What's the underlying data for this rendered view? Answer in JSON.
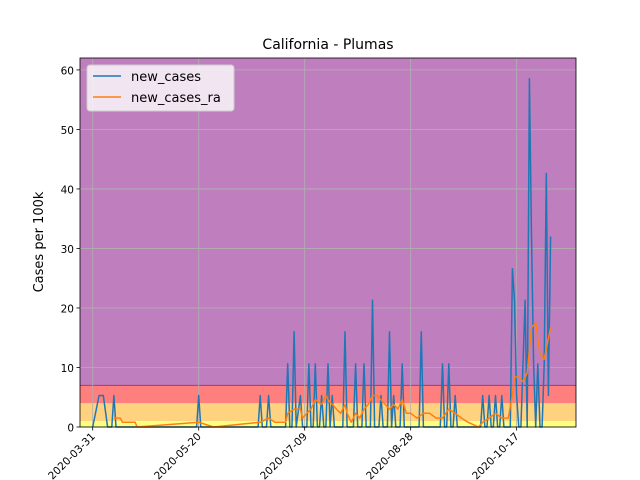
{
  "chart_data": {
    "type": "line",
    "title": "California - Plumas",
    "xlabel": "",
    "ylabel": "Cases per 100k",
    "x_tick_labels": [
      "2020-03-31",
      "2020-05-20",
      "2020-07-09",
      "2020-08-28",
      "2020-10-17"
    ],
    "x_range": [
      "2020-03-25",
      "2020-11-14"
    ],
    "ylim": [
      0,
      62
    ],
    "yticks": [
      0,
      10,
      20,
      30,
      40,
      50,
      60
    ],
    "grid": true,
    "legend_position": "top-left",
    "background_bands": [
      {
        "from": 0,
        "to": 1,
        "color": "#ffff7f"
      },
      {
        "from": 1,
        "to": 4,
        "color": "#ffd27f"
      },
      {
        "from": 4,
        "to": 7,
        "color": "#ff7f7f"
      },
      {
        "from": 7,
        "to": 62,
        "color": "#bf7fbf"
      }
    ],
    "series": [
      {
        "name": "new_cases",
        "color": "#1f77b4",
        "points": [
          [
            "2020-03-31",
            0
          ],
          [
            "2020-04-03",
            5.3
          ],
          [
            "2020-04-05",
            5.3
          ],
          [
            "2020-04-07",
            0
          ],
          [
            "2020-04-09",
            0
          ],
          [
            "2020-04-10",
            5.3
          ],
          [
            "2020-04-11",
            0
          ],
          [
            "2020-05-19",
            0
          ],
          [
            "2020-05-20",
            5.3
          ],
          [
            "2020-05-21",
            0
          ],
          [
            "2020-06-17",
            0
          ],
          [
            "2020-06-18",
            5.3
          ],
          [
            "2020-06-19",
            0
          ],
          [
            "2020-06-21",
            0
          ],
          [
            "2020-06-22",
            5.3
          ],
          [
            "2020-06-23",
            0
          ],
          [
            "2020-06-30",
            0
          ],
          [
            "2020-07-01",
            10.6
          ],
          [
            "2020-07-02",
            0
          ],
          [
            "2020-07-03",
            0
          ],
          [
            "2020-07-04",
            16
          ],
          [
            "2020-07-05",
            0
          ],
          [
            "2020-07-07",
            5.3
          ],
          [
            "2020-07-08",
            0
          ],
          [
            "2020-07-10",
            0
          ],
          [
            "2020-07-11",
            10.6
          ],
          [
            "2020-07-12",
            0
          ],
          [
            "2020-07-13",
            0
          ],
          [
            "2020-07-14",
            10.6
          ],
          [
            "2020-07-15",
            0
          ],
          [
            "2020-07-16",
            0
          ],
          [
            "2020-07-17",
            5.3
          ],
          [
            "2020-07-18",
            0
          ],
          [
            "2020-07-19",
            0
          ],
          [
            "2020-07-20",
            10.6
          ],
          [
            "2020-07-21",
            0
          ],
          [
            "2020-07-22",
            5.3
          ],
          [
            "2020-07-23",
            0
          ],
          [
            "2020-07-27",
            0
          ],
          [
            "2020-07-28",
            16
          ],
          [
            "2020-07-29",
            0
          ],
          [
            "2020-08-01",
            0
          ],
          [
            "2020-08-02",
            10.6
          ],
          [
            "2020-08-03",
            0
          ],
          [
            "2020-08-05",
            0
          ],
          [
            "2020-08-06",
            10.6
          ],
          [
            "2020-08-07",
            0
          ],
          [
            "2020-08-09",
            0
          ],
          [
            "2020-08-10",
            21.3
          ],
          [
            "2020-08-11",
            0
          ],
          [
            "2020-08-13",
            0
          ],
          [
            "2020-08-14",
            5.3
          ],
          [
            "2020-08-15",
            0
          ],
          [
            "2020-08-17",
            0
          ],
          [
            "2020-08-18",
            16
          ],
          [
            "2020-08-19",
            0
          ],
          [
            "2020-08-20",
            5.3
          ],
          [
            "2020-08-21",
            0
          ],
          [
            "2020-08-23",
            0
          ],
          [
            "2020-08-24",
            10.6
          ],
          [
            "2020-08-25",
            0
          ],
          [
            "2020-09-01",
            0
          ],
          [
            "2020-09-02",
            16
          ],
          [
            "2020-09-03",
            0
          ],
          [
            "2020-09-11",
            0
          ],
          [
            "2020-09-12",
            10.6
          ],
          [
            "2020-09-13",
            0
          ],
          [
            "2020-09-14",
            0
          ],
          [
            "2020-09-15",
            10.6
          ],
          [
            "2020-09-16",
            0
          ],
          [
            "2020-09-17",
            0
          ],
          [
            "2020-09-18",
            5.3
          ],
          [
            "2020-09-19",
            0
          ],
          [
            "2020-09-30",
            0
          ],
          [
            "2020-10-01",
            5.3
          ],
          [
            "2020-10-02",
            0
          ],
          [
            "2020-10-03",
            0
          ],
          [
            "2020-10-04",
            5.3
          ],
          [
            "2020-10-05",
            0
          ],
          [
            "2020-10-06",
            0
          ],
          [
            "2020-10-07",
            5.3
          ],
          [
            "2020-10-08",
            0
          ],
          [
            "2020-10-09",
            0
          ],
          [
            "2020-10-10",
            5.3
          ],
          [
            "2020-10-11",
            0
          ],
          [
            "2020-10-14",
            0
          ],
          [
            "2020-10-15",
            26.6
          ],
          [
            "2020-10-16",
            21.3
          ],
          [
            "2020-10-17",
            5.3
          ],
          [
            "2020-10-18",
            0
          ],
          [
            "2020-10-19",
            0
          ],
          [
            "2020-10-20",
            10.6
          ],
          [
            "2020-10-21",
            21.3
          ],
          [
            "2020-10-22",
            0
          ],
          [
            "2020-10-23",
            58.5
          ],
          [
            "2020-10-24",
            32
          ],
          [
            "2020-10-25",
            10.6
          ],
          [
            "2020-10-26",
            0
          ],
          [
            "2020-10-27",
            10.6
          ],
          [
            "2020-10-28",
            0
          ],
          [
            "2020-10-29",
            0
          ],
          [
            "2020-10-30",
            10.6
          ],
          [
            "2020-10-31",
            42.6
          ],
          [
            "2020-11-01",
            5.3
          ],
          [
            "2020-11-02",
            32
          ]
        ]
      },
      {
        "name": "new_cases_ra",
        "color": "#ff7f0e",
        "points": [
          [
            "2020-04-10",
            1.5
          ],
          [
            "2020-04-13",
            1.5
          ],
          [
            "2020-04-14",
            0.8
          ],
          [
            "2020-04-20",
            0.8
          ],
          [
            "2020-04-21",
            0
          ],
          [
            "2020-05-20",
            0.8
          ],
          [
            "2020-05-27",
            0
          ],
          [
            "2020-06-18",
            0.8
          ],
          [
            "2020-06-22",
            1.5
          ],
          [
            "2020-06-25",
            0.8
          ],
          [
            "2020-06-30",
            0.8
          ],
          [
            "2020-07-01",
            2.3
          ],
          [
            "2020-07-04",
            3.0
          ],
          [
            "2020-07-07",
            3.0
          ],
          [
            "2020-07-08",
            1.5
          ],
          [
            "2020-07-10",
            2.3
          ],
          [
            "2020-07-12",
            3.0
          ],
          [
            "2020-07-14",
            4.6
          ],
          [
            "2020-07-17",
            3.8
          ],
          [
            "2020-07-19",
            5.3
          ],
          [
            "2020-07-20",
            4.6
          ],
          [
            "2020-07-22",
            3.8
          ],
          [
            "2020-07-24",
            3.0
          ],
          [
            "2020-07-26",
            2.3
          ],
          [
            "2020-07-27",
            3.0
          ],
          [
            "2020-07-28",
            3.8
          ],
          [
            "2020-07-29",
            2.3
          ],
          [
            "2020-07-31",
            0.8
          ],
          [
            "2020-08-02",
            2.3
          ],
          [
            "2020-08-04",
            1.5
          ],
          [
            "2020-08-06",
            3.0
          ],
          [
            "2020-08-08",
            3.8
          ],
          [
            "2020-08-10",
            5.3
          ],
          [
            "2020-08-12",
            5.3
          ],
          [
            "2020-08-14",
            4.6
          ],
          [
            "2020-08-16",
            3.8
          ],
          [
            "2020-08-18",
            3.0
          ],
          [
            "2020-08-20",
            3.8
          ],
          [
            "2020-08-22",
            3.0
          ],
          [
            "2020-08-24",
            4.6
          ],
          [
            "2020-08-26",
            2.3
          ],
          [
            "2020-08-28",
            2.3
          ],
          [
            "2020-08-31",
            1.5
          ],
          [
            "2020-09-03",
            2.3
          ],
          [
            "2020-09-06",
            2.3
          ],
          [
            "2020-09-09",
            1.5
          ],
          [
            "2020-09-12",
            1.5
          ],
          [
            "2020-09-15",
            3.0
          ],
          [
            "2020-09-18",
            2.3
          ],
          [
            "2020-09-21",
            1.5
          ],
          [
            "2020-09-24",
            0.8
          ],
          [
            "2020-09-29",
            0
          ],
          [
            "2020-10-01",
            0.8
          ],
          [
            "2020-10-04",
            1.5
          ],
          [
            "2020-10-07",
            2.3
          ],
          [
            "2020-10-10",
            1.5
          ],
          [
            "2020-10-13",
            1.5
          ],
          [
            "2020-10-15",
            5.3
          ],
          [
            "2020-10-16",
            8.4
          ],
          [
            "2020-10-18",
            8.4
          ],
          [
            "2020-10-20",
            7.6
          ],
          [
            "2020-10-22",
            9.1
          ],
          [
            "2020-10-24",
            16.7
          ],
          [
            "2020-10-26",
            17.5
          ],
          [
            "2020-10-28",
            12.2
          ],
          [
            "2020-10-30",
            11.4
          ],
          [
            "2020-11-02",
            16.7
          ]
        ]
      }
    ]
  }
}
